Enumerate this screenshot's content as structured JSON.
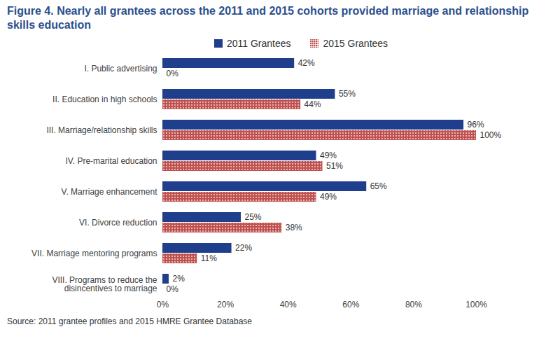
{
  "chart_data": {
    "type": "bar",
    "title": "Figure 4. Nearly all grantees across the 2011 and 2015 cohorts provided marriage and relationship skills education",
    "caption": "Source: 2011 grantee profiles and 2015 HMRE Grantee Database",
    "orientation": "horizontal",
    "categories": [
      "I. Public advertising",
      "II. Education in high schools",
      "III. Marriage/relationship skills",
      "IV. Pre-marital education",
      "V. Marriage enhancement",
      "VI. Divorce reduction",
      "VII. Marriage mentoring programs",
      "VIII. Programs to reduce the\ndisincentives to marriage"
    ],
    "series": [
      {
        "name": "2011 Grantees",
        "color": "#1f3e8c",
        "values": [
          42,
          55,
          96,
          49,
          65,
          25,
          22,
          2
        ],
        "value_labels": [
          "42%",
          "55%",
          "96%",
          "49%",
          "65%",
          "25%",
          "22%",
          "2%"
        ]
      },
      {
        "name": "2015 Grantees",
        "color": "#c0504d",
        "values": [
          0,
          44,
          100,
          51,
          49,
          38,
          11,
          0
        ],
        "value_labels": [
          "0%",
          "44%",
          "100%",
          "51%",
          "49%",
          "38%",
          "11%",
          "0%"
        ]
      }
    ],
    "xlim": [
      0,
      100
    ],
    "xticks": [
      {
        "value": 0,
        "label": "0%"
      },
      {
        "value": 20,
        "label": "20%"
      },
      {
        "value": 40,
        "label": "40%"
      },
      {
        "value": 60,
        "label": "60%"
      },
      {
        "value": 80,
        "label": "80%"
      },
      {
        "value": 100,
        "label": "100%"
      }
    ],
    "data_labels": true,
    "legend": "top",
    "grid": false
  }
}
